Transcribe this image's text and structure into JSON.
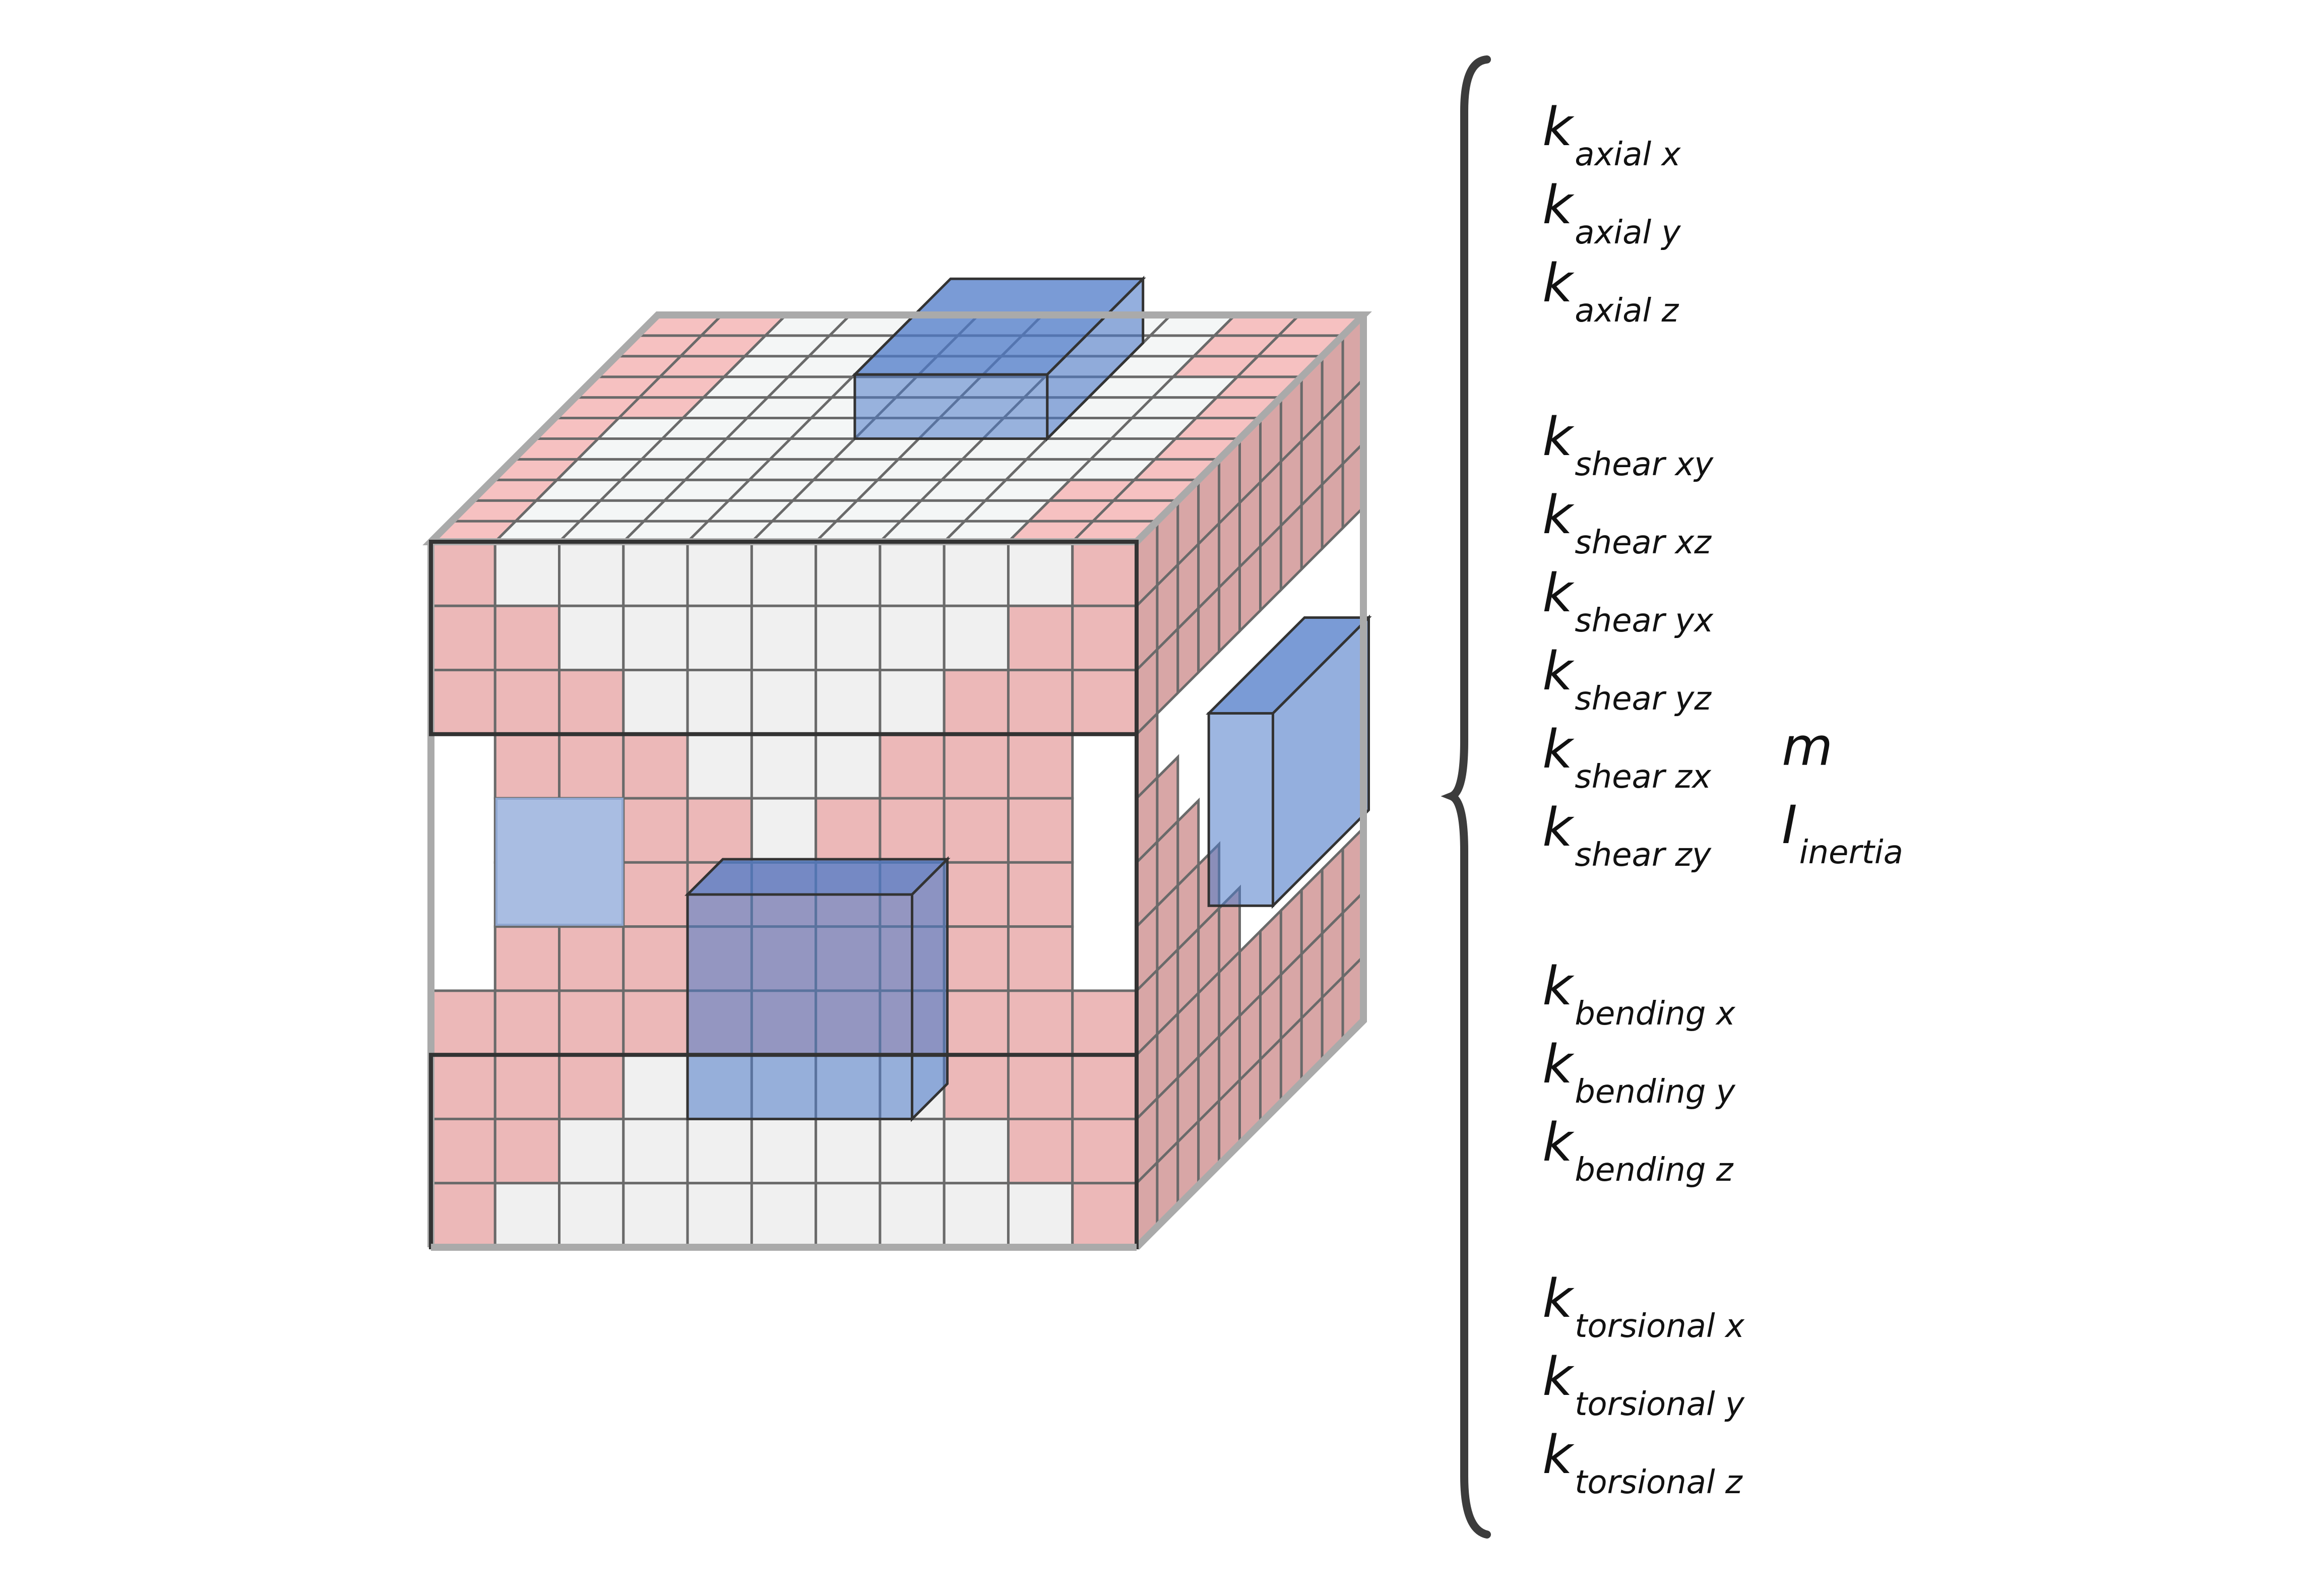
{
  "colors": {
    "background": "#ffffff",
    "white_cell": "#f0f0f0",
    "pink_cell": "#ecb8b8",
    "pink_cell_top": "#f6c1c1",
    "pink_side": "#d8a6a6",
    "blue_box": "#4d7ac8",
    "grid_line": "#6a6a6a",
    "edge_outline": "#333333",
    "outer_frame": "#aaaaaa",
    "text": "#111111"
  },
  "icons": [
    "curly-brace"
  ],
  "properties": {
    "axial": [
      {
        "main": "k",
        "sub": "axial x"
      },
      {
        "main": "k",
        "sub": "axial y"
      },
      {
        "main": "k",
        "sub": "axial z"
      }
    ],
    "shear": [
      {
        "main": "k",
        "sub": "shear xy"
      },
      {
        "main": "k",
        "sub": "shear xz"
      },
      {
        "main": "k",
        "sub": "shear yx"
      },
      {
        "main": "k",
        "sub": "shear yz"
      },
      {
        "main": "k",
        "sub": "shear zx"
      },
      {
        "main": "k",
        "sub": "shear zy"
      }
    ],
    "bending": [
      {
        "main": "k",
        "sub": "bending x"
      },
      {
        "main": "k",
        "sub": "bending y"
      },
      {
        "main": "k",
        "sub": "bending z"
      }
    ],
    "torsional": [
      {
        "main": "k",
        "sub": "torsional x"
      },
      {
        "main": "k",
        "sub": "torsional y"
      },
      {
        "main": "k",
        "sub": "torsional z"
      }
    ],
    "mass": {
      "main": "m",
      "sub": ""
    },
    "inertia": {
      "main": "I",
      "sub": "inertia"
    }
  }
}
